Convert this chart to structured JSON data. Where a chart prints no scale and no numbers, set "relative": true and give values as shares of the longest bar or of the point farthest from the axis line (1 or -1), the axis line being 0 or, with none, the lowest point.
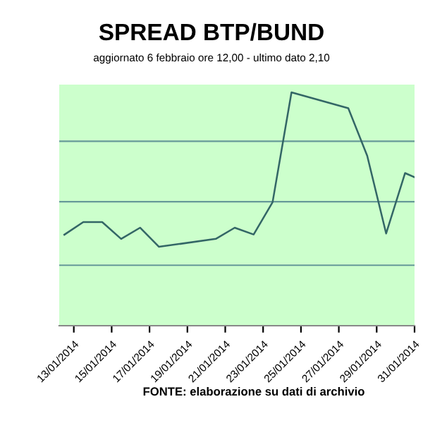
{
  "chart_data": {
    "type": "line",
    "title": "SPREAD BTP/BUND",
    "subtitle": "aggiornato 6 febbraio ore 12,00 - ultimo dato 2,10",
    "annotations": [
      "FONTE: elaborazione su dati di archivio"
    ],
    "relative": true,
    "legend": false,
    "ref_lines": [
      {
        "axis": "y",
        "value": 0.259,
        "color": "#669999"
      },
      {
        "axis": "y",
        "value": 0.531,
        "color": "#669999"
      },
      {
        "axis": "y",
        "value": 0.79,
        "color": "#669999"
      }
    ],
    "marker": "none",
    "line_style": "solid",
    "x": [
      "2014-01-12T12:00",
      "2014-01-13T12:00",
      "2014-01-14T12:00",
      "2014-01-15T12:00",
      "2014-01-16T12:00",
      "2014-01-17T12:00",
      "2014-01-20T12:00",
      "2014-01-21T12:00",
      "2014-01-22T12:00",
      "2014-01-23T12:00",
      "2014-01-24T12:00",
      "2014-01-27T12:00",
      "2014-01-28T12:00",
      "2014-01-29T12:00",
      "2014-01-30T12:00",
      "2014-01-31T00:00"
    ],
    "series": [
      {
        "color": "#336666",
        "values": [
          0.39,
          0.444,
          0.444,
          0.372,
          0.42,
          0.338,
          0.372,
          0.42,
          0.391,
          0.529,
          1,
          0.932,
          0.728,
          0.395,
          0.654,
          0.636
        ]
      }
    ],
    "xlim": [
      "2014-01-12T05:30",
      "2014-01-31T00:00"
    ],
    "xticks": [
      {
        "value": "2014-01-13",
        "label": "13/01/2014"
      },
      {
        "value": "2014-01-15",
        "label": "15/01/2014"
      },
      {
        "value": "2014-01-17",
        "label": "17/01/2014"
      },
      {
        "value": "2014-01-19",
        "label": "19/01/2014"
      },
      {
        "value": "2014-01-21",
        "label": "21/01/2014"
      },
      {
        "value": "2014-01-23",
        "label": "23/01/2014"
      },
      {
        "value": "2014-01-25",
        "label": "25/01/2014"
      },
      {
        "value": "2014-01-27",
        "label": "27/01/2014"
      },
      {
        "value": "2014-01-29",
        "label": "29/01/2014"
      },
      {
        "value": "2014-01-31",
        "label": "31/01/2014"
      }
    ]
  }
}
